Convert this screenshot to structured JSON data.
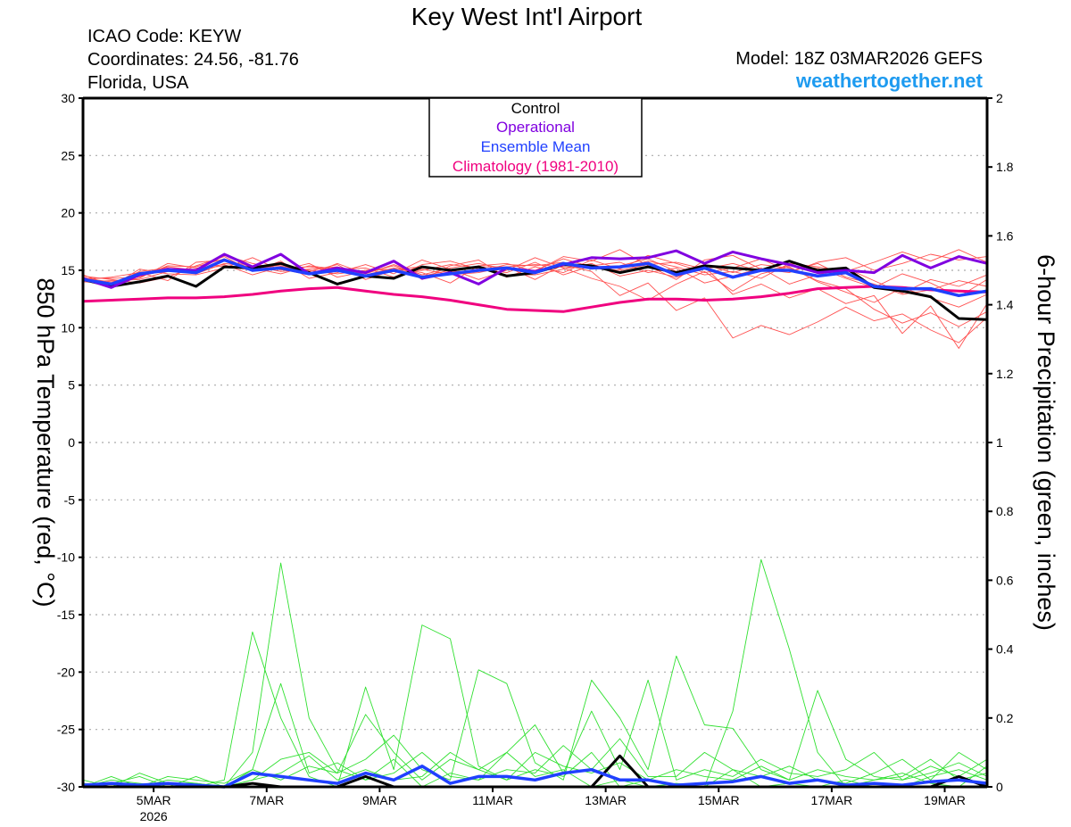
{
  "header": {
    "title": "Key West Int'l Airport",
    "icao": "ICAO Code: KEYW",
    "coordinates": "Coordinates: 24.56, -81.76",
    "region": "Florida, USA",
    "model": "Model: 18Z 03MAR2026 GEFS",
    "site": "weathertogether.net"
  },
  "chart_data": {
    "type": "line",
    "title": "Key West Int'l Airport",
    "ylabel": "850 hPa Temperature (red, °C)",
    "y2label": "6-hour Precipitation (green, inches)",
    "ylim": [
      -30,
      30
    ],
    "y2lim": [
      0,
      2
    ],
    "x_units": "days of March 2026 (fractional)",
    "x_start": 3.75,
    "x_step": 0.5,
    "xlim": [
      3.75,
      19.75
    ],
    "x_ticks": [
      {
        "value": 5,
        "label": "5MAR",
        "sublabel": "2026"
      },
      {
        "value": 7,
        "label": "7MAR"
      },
      {
        "value": 9,
        "label": "9MAR"
      },
      {
        "value": 11,
        "label": "11MAR"
      },
      {
        "value": 13,
        "label": "13MAR"
      },
      {
        "value": 15,
        "label": "15MAR"
      },
      {
        "value": 17,
        "label": "17MAR"
      },
      {
        "value": 19,
        "label": "19MAR"
      }
    ],
    "y_ticks": [
      "30",
      "25",
      "20",
      "15",
      "10",
      "5",
      "0",
      "-5",
      "-10",
      "-15",
      "-20",
      "-25",
      "-30"
    ],
    "y2_ticks": [
      "2",
      "1.8",
      "1.6",
      "1.4",
      "1.2",
      "1",
      "0.8",
      "0.6",
      "0.4",
      "0.2",
      "0"
    ],
    "grid": "horizontal dotted",
    "legend": {
      "placement": "top-center",
      "entries": [
        {
          "label": "Control",
          "color": "#000000"
        },
        {
          "label": "Operational",
          "color": "#8000e0"
        },
        {
          "label": "Ensemble Mean",
          "color": "#2040ff"
        },
        {
          "label": "Climatology (1981-2010)",
          "color": "#f0007f"
        }
      ]
    },
    "colors": {
      "members_temp": "#ff5050",
      "members_precip": "#30e030",
      "control": "#000000",
      "operational": "#8000e0",
      "mean": "#2040ff",
      "climatology": "#f0007f"
    },
    "temperature": {
      "members": [
        [
          14.0,
          13.9,
          14.6,
          15.3,
          15.0,
          15.8,
          15.4,
          14.9,
          15.1,
          15.3,
          14.6,
          15.2,
          14.8,
          13.9,
          15.4,
          15.6,
          14.9,
          16.2,
          15.8,
          16.8,
          15.4,
          14.2,
          15.9,
          16.3,
          15.1,
          14.8,
          15.7,
          16.1,
          15.0,
          15.6,
          16.4,
          15.9,
          16.2
        ],
        [
          14.5,
          14.2,
          13.9,
          14.4,
          15.4,
          16.2,
          14.9,
          15.8,
          14.3,
          14.8,
          15.5,
          14.7,
          15.9,
          15.1,
          14.2,
          15.0,
          16.1,
          15.2,
          14.3,
          13.6,
          12.4,
          13.8,
          14.9,
          13.2,
          14.7,
          15.3,
          14.0,
          13.1,
          12.2,
          13.5,
          12.6,
          11.8,
          12.9
        ],
        [
          14.1,
          13.6,
          15.1,
          14.7,
          14.6,
          15.2,
          16.1,
          15.0,
          15.6,
          14.4,
          14.9,
          15.8,
          14.2,
          15.4,
          15.9,
          14.4,
          15.3,
          14.8,
          15.9,
          15.1,
          16.3,
          15.6,
          14.8,
          15.2,
          16.0,
          14.9,
          15.6,
          14.4,
          13.8,
          12.9,
          13.3,
          14.1,
          13.6
        ],
        [
          14.3,
          14.0,
          14.3,
          15.6,
          15.2,
          15.5,
          14.6,
          15.3,
          14.9,
          15.5,
          14.2,
          15.0,
          15.1,
          14.6,
          14.8,
          15.3,
          14.2,
          15.5,
          14.9,
          12.8,
          13.9,
          11.5,
          12.6,
          9.1,
          10.2,
          9.4,
          10.5,
          11.8,
          10.6,
          11.2,
          9.8,
          8.7,
          10.9
        ],
        [
          14.2,
          14.4,
          14.8,
          14.1,
          15.7,
          15.9,
          15.2,
          14.7,
          15.4,
          15.1,
          15.2,
          14.4,
          15.5,
          15.8,
          15.1,
          14.8,
          15.7,
          14.6,
          15.4,
          15.7,
          14.8,
          15.2,
          13.9,
          14.5,
          15.2,
          13.8,
          14.6,
          15.2,
          14.1,
          13.0,
          14.2,
          13.6,
          14.6
        ],
        [
          14.4,
          13.8,
          14.5,
          15.0,
          14.9,
          16.3,
          15.6,
          15.1,
          14.6,
          15.6,
          14.7,
          15.5,
          14.6,
          15.2,
          15.6,
          15.1,
          15.0,
          16.0,
          15.3,
          15.4,
          16.0,
          14.9,
          15.5,
          14.8,
          15.5,
          15.2,
          14.1,
          13.4,
          11.6,
          10.4,
          11.3,
          10.1,
          11.4
        ],
        [
          14.0,
          14.1,
          14.2,
          14.9,
          15.1,
          15.4,
          15.0,
          15.5,
          15.0,
          14.7,
          15.0,
          15.1,
          15.3,
          14.9,
          14.9,
          15.5,
          15.4,
          15.7,
          15.1,
          15.2,
          15.8,
          15.3,
          14.6,
          14.9,
          14.3,
          15.6,
          15.3,
          14.9,
          15.7,
          16.6,
          15.8,
          16.8,
          15.7
        ],
        [
          14.6,
          13.7,
          14.9,
          15.2,
          14.7,
          15.6,
          15.3,
          15.4,
          14.8,
          15.2,
          14.4,
          14.9,
          15.0,
          15.5,
          15.2,
          14.6,
          14.6,
          15.1,
          15.6,
          14.5,
          15.0,
          14.4,
          15.3,
          12.9,
          13.8,
          12.6,
          13.4,
          12.1,
          12.8,
          9.5,
          11.9,
          8.2,
          12.1
        ],
        [
          14.3,
          14.3,
          14.4,
          15.4,
          15.3,
          16.0,
          15.1,
          15.2,
          15.3,
          15.0,
          14.8,
          15.4,
          14.5,
          15.0,
          15.3,
          15.3,
          15.5,
          15.3,
          15.2,
          15.0,
          15.5,
          15.7,
          15.1,
          15.6,
          14.9,
          15.4,
          15.2,
          14.3,
          13.5,
          14.7,
          13.9,
          12.7,
          14.2
        ]
      ],
      "control": [
        14.2,
        13.6,
        14.0,
        14.5,
        13.6,
        15.3,
        15.2,
        15.6,
        14.8,
        13.8,
        14.5,
        14.3,
        15.3,
        15.0,
        15.3,
        14.5,
        14.8,
        15.5,
        15.4,
        14.8,
        15.3,
        14.8,
        15.4,
        15.2,
        15.0,
        15.8,
        15.0,
        15.2,
        13.5,
        13.2,
        12.7,
        10.8,
        10.7
      ],
      "operational": [
        14.3,
        13.5,
        14.6,
        15.1,
        15.0,
        16.4,
        15.3,
        16.4,
        14.7,
        15.2,
        14.8,
        15.8,
        14.3,
        14.8,
        13.8,
        15.2,
        14.9,
        15.5,
        16.1,
        16.0,
        16.1,
        16.7,
        15.6,
        16.6,
        16.0,
        15.5,
        14.8,
        15.0,
        14.8,
        16.3,
        15.2,
        16.2,
        15.6
      ],
      "ensemble_mean": [
        14.2,
        13.8,
        14.7,
        15.0,
        14.8,
        15.9,
        15.0,
        15.2,
        14.7,
        15.0,
        14.5,
        15.0,
        14.4,
        14.7,
        15.0,
        15.2,
        14.8,
        15.6,
        15.2,
        15.3,
        15.6,
        14.6,
        15.2,
        14.4,
        15.0,
        15.0,
        14.5,
        14.8,
        13.6,
        13.4,
        13.4,
        12.8,
        13.2
      ],
      "climatology": [
        12.3,
        12.4,
        12.5,
        12.6,
        12.6,
        12.7,
        12.9,
        13.2,
        13.4,
        13.5,
        13.2,
        12.9,
        12.7,
        12.4,
        12.0,
        11.6,
        11.5,
        11.4,
        11.8,
        12.2,
        12.5,
        12.5,
        12.4,
        12.5,
        12.7,
        13.0,
        13.4,
        13.5,
        13.6,
        13.5,
        13.3,
        13.2,
        13.1
      ]
    },
    "precipitation": {
      "members": [
        [
          0.0,
          0.02,
          0.01,
          0.0,
          0.03,
          0.0,
          0.1,
          0.65,
          0.2,
          0.05,
          0.02,
          0.08,
          0.0,
          0.04,
          0.02,
          0.1,
          0.03,
          0.05,
          0.0,
          0.02,
          0.0,
          0.01,
          0.0,
          0.05,
          0.0,
          0.01,
          0.0,
          0.02,
          0.0,
          0.0,
          0.03,
          0.05,
          0.02
        ],
        [
          0.01,
          0.0,
          0.04,
          0.01,
          0.0,
          0.02,
          0.45,
          0.2,
          0.03,
          0.0,
          0.29,
          0.05,
          0.47,
          0.43,
          0.06,
          0.02,
          0.05,
          0.03,
          0.1,
          0.0,
          0.02,
          0.0,
          0.0,
          0.22,
          0.66,
          0.4,
          0.1,
          0.0,
          0.02,
          0.04,
          0.01,
          0.0,
          0.06
        ],
        [
          0.0,
          0.03,
          0.0,
          0.02,
          0.01,
          0.0,
          0.02,
          0.08,
          0.1,
          0.04,
          0.08,
          0.15,
          0.05,
          0.02,
          0.34,
          0.3,
          0.07,
          0.02,
          0.31,
          0.2,
          0.05,
          0.38,
          0.18,
          0.17,
          0.05,
          0.02,
          0.28,
          0.08,
          0.03,
          0.02,
          0.06,
          0.03,
          0.08
        ],
        [
          0.02,
          0.0,
          0.0,
          0.03,
          0.02,
          0.01,
          0.05,
          0.02,
          0.06,
          0.04,
          0.21,
          0.1,
          0.02,
          0.08,
          0.05,
          0.1,
          0.18,
          0.04,
          0.22,
          0.05,
          0.31,
          0.02,
          0.05,
          0.03,
          0.08,
          0.04,
          0.03,
          0.05,
          0.1,
          0.02,
          0.04,
          0.07,
          0.03
        ],
        [
          0.0,
          0.01,
          0.03,
          0.0,
          0.0,
          0.0,
          0.05,
          0.3,
          0.04,
          0.07,
          0.02,
          0.04,
          0.1,
          0.03,
          0.02,
          0.05,
          0.04,
          0.12,
          0.05,
          0.14,
          0.03,
          0.03,
          0.1,
          0.05,
          0.03,
          0.06,
          0.02,
          0.01,
          0.04,
          0.08,
          0.02,
          0.1,
          0.05
        ],
        [
          0.01,
          0.0,
          0.0,
          0.01,
          0.01,
          0.0,
          0.02,
          0.04,
          0.09,
          0.02,
          0.05,
          0.02,
          0.03,
          0.1,
          0.05,
          0.02,
          0.1,
          0.06,
          0.04,
          0.07,
          0.02,
          0.05,
          0.03,
          0.02,
          0.06,
          0.02,
          0.05,
          0.03,
          0.02,
          0.03,
          0.08,
          0.02,
          0.04
        ]
      ],
      "control": [
        0.0,
        0.01,
        0.0,
        0.0,
        0.0,
        0.0,
        0.01,
        0.0,
        0.0,
        0.0,
        0.03,
        0.0,
        0.0,
        0.0,
        0.0,
        0.0,
        0.0,
        0.0,
        0.0,
        0.09,
        0.0,
        0.0,
        0.0,
        0.0,
        0.0,
        0.0,
        0.0,
        0.0,
        0.0,
        0.0,
        0.0,
        0.03,
        0.0
      ],
      "ensemble_mean": [
        0.005,
        0.01,
        0.005,
        0.01,
        0.005,
        0.0,
        0.04,
        0.03,
        0.02,
        0.01,
        0.04,
        0.02,
        0.06,
        0.01,
        0.03,
        0.03,
        0.02,
        0.04,
        0.05,
        0.02,
        0.02,
        0.005,
        0.01,
        0.015,
        0.03,
        0.01,
        0.02,
        0.005,
        0.01,
        0.005,
        0.015,
        0.02,
        0.01
      ]
    }
  }
}
